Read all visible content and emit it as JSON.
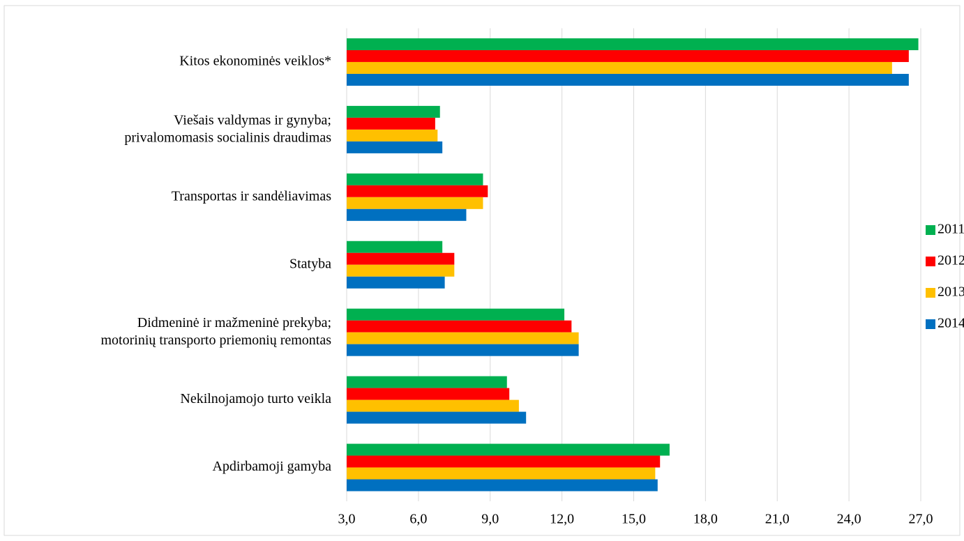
{
  "chart_data": {
    "type": "bar",
    "orientation": "horizontal",
    "categories": [
      "Kitos ekonominės veiklos*",
      "Viešais valdymas ir gynyba;\nprivalomomasis socialinis draudimas",
      "Transportas ir sandėliavimas",
      "Statyba",
      "Didmeninė ir mažmeninė prekyba;\nmotorinių transporto priemonių  remontas",
      "Nekilnojamojo turto veikla",
      "Apdirbamoji gamyba"
    ],
    "series": [
      {
        "name": "2011",
        "color": "#00b050",
        "values": [
          26.9,
          6.9,
          8.7,
          7.0,
          12.1,
          9.7,
          16.5
        ]
      },
      {
        "name": "2012",
        "color": "#ff0000",
        "values": [
          26.5,
          6.7,
          8.9,
          7.5,
          12.4,
          9.8,
          16.1
        ]
      },
      {
        "name": "2013",
        "color": "#ffc000",
        "values": [
          25.8,
          6.8,
          8.7,
          7.5,
          12.7,
          10.2,
          15.9
        ]
      },
      {
        "name": "2014",
        "color": "#0070c0",
        "values": [
          26.5,
          7.0,
          8.0,
          7.1,
          12.7,
          10.5,
          16.0
        ]
      }
    ],
    "xlim": [
      3,
      27
    ],
    "xticks": [
      {
        "value": 3,
        "label": "3,0"
      },
      {
        "value": 6,
        "label": "6,0"
      },
      {
        "value": 9,
        "label": "9,0"
      },
      {
        "value": 12,
        "label": "12,0"
      },
      {
        "value": 15,
        "label": "15,0"
      },
      {
        "value": 18,
        "label": "18,0"
      },
      {
        "value": 21,
        "label": "21,0"
      },
      {
        "value": 24,
        "label": "24,0"
      },
      {
        "value": 27,
        "label": "27,0"
      }
    ],
    "grid": true,
    "legend": "right"
  }
}
